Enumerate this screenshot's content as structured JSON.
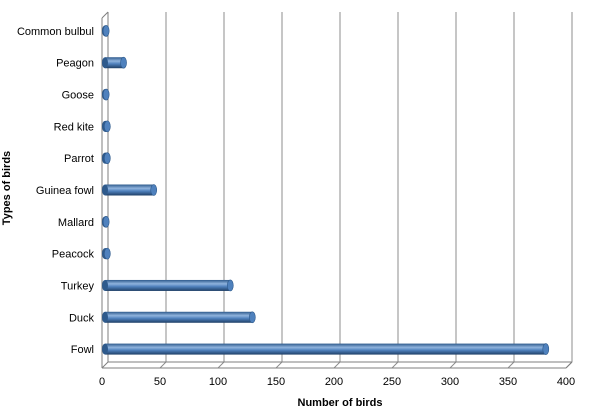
{
  "chart_data": {
    "type": "bar",
    "orientation": "horizontal",
    "style": "3d-cylinder",
    "categories": [
      "Fowl",
      "Duck",
      "Turkey",
      "Peacock",
      "Mallard",
      "Guinea fowl",
      "Parrot",
      "Red kite",
      "Goose",
      "Peagon",
      "Common bulbul"
    ],
    "values": [
      380,
      127,
      108,
      2,
      1,
      42,
      2,
      2,
      1,
      16,
      1
    ],
    "xlabel": "Number of birds",
    "ylabel": "Types of birds",
    "xlim": [
      0,
      400
    ],
    "xticks": [
      "0",
      "50",
      "100",
      "150",
      "200",
      "250",
      "300",
      "350",
      "400"
    ],
    "grid": "vertical",
    "legend": "none",
    "bar_color": "#4f81bd"
  }
}
